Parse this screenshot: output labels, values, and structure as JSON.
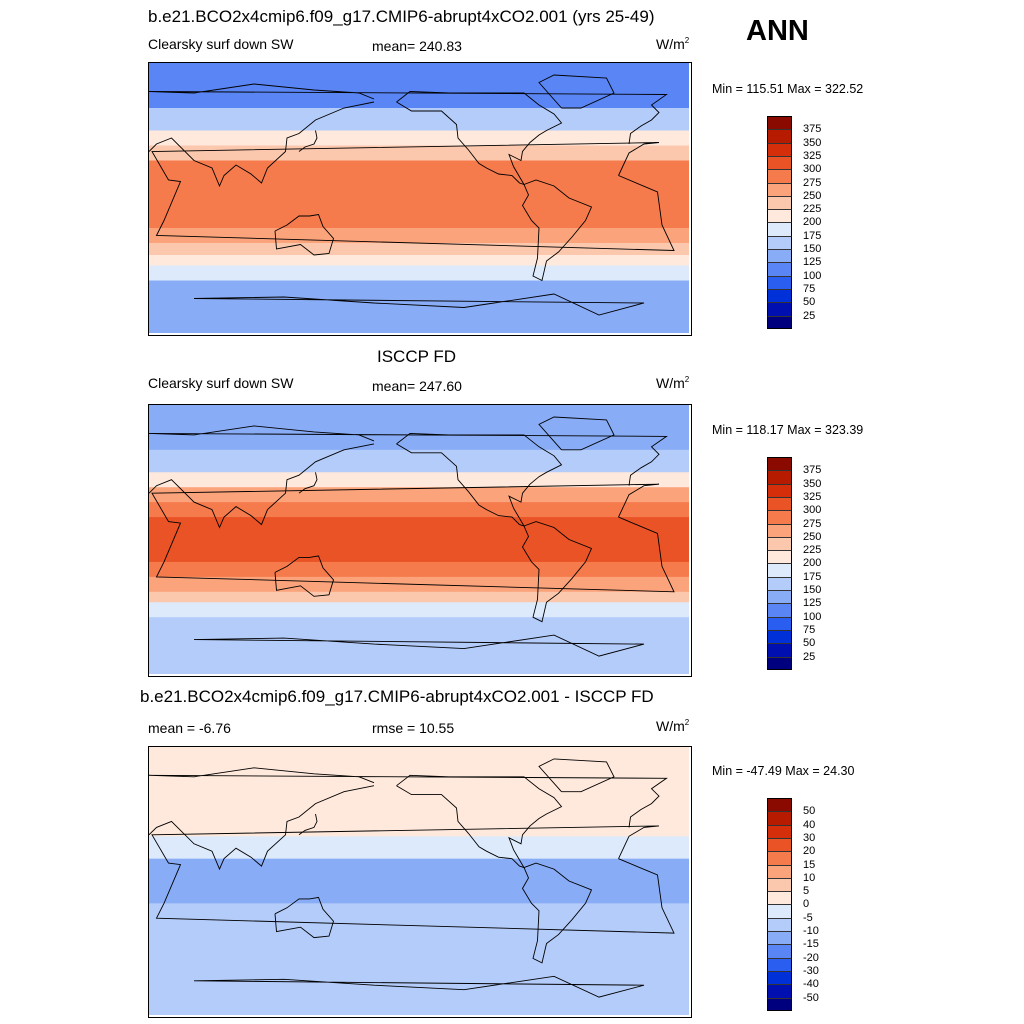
{
  "season": "ANN",
  "colors": {
    "abs_scale": [
      "#00007f",
      "#0010b0",
      "#0030d8",
      "#2a5ef0",
      "#5a86f5",
      "#88acf6",
      "#b4ccfa",
      "#dceafc",
      "#ffe9dc",
      "#fcc8ad",
      "#fba47c",
      "#f57a4c",
      "#e95325",
      "#d52e0b",
      "#b61b00",
      "#8b0a00"
    ],
    "diff_scale": [
      "#00007f",
      "#0010b0",
      "#0030d8",
      "#2a5ef0",
      "#5a86f5",
      "#88acf6",
      "#b4ccfa",
      "#dceafc",
      "#ffe9dc",
      "#fcc8ad",
      "#fba47c",
      "#f57a4c",
      "#e95325",
      "#d52e0b",
      "#b61b00",
      "#8b0a00"
    ]
  },
  "panels": [
    {
      "title": "b.e21.BCO2x4cmip6.f09_g17.CMIP6-abrupt4xCO2.001 (yrs 25-49)",
      "left_label": "Clearsky surf down SW",
      "center_label": "mean= 240.83",
      "unit_base": "W/m",
      "unit_sup": "2",
      "minmax": "Min = 115.51 Max = 322.52",
      "colorbar_labels": [
        "375",
        "350",
        "325",
        "300",
        "275",
        "250",
        "225",
        "200",
        "175",
        "150",
        "125",
        "100",
        "75",
        "50",
        "25"
      ]
    },
    {
      "title": "ISCCP FD",
      "left_label": "Clearsky surf down SW",
      "center_label": "mean= 247.60",
      "unit_base": "W/m",
      "unit_sup": "2",
      "minmax": "Min = 118.17 Max = 323.39",
      "colorbar_labels": [
        "375",
        "350",
        "325",
        "300",
        "275",
        "250",
        "225",
        "200",
        "175",
        "150",
        "125",
        "100",
        "75",
        "50",
        "25"
      ]
    },
    {
      "title": "b.e21.BCO2x4cmip6.f09_g17.CMIP6-abrupt4xCO2.001 - ISCCP FD",
      "left_label": "mean =  -6.76",
      "center_label": "rmse =  10.55",
      "unit_base": "W/m",
      "unit_sup": "2",
      "minmax": "Min = -47.49 Max =  24.30",
      "colorbar_labels": [
        "50",
        "40",
        "30",
        "20",
        "15",
        "10",
        "5",
        "0",
        "-5",
        "-10",
        "-15",
        "-20",
        "-30",
        "-40",
        "-50"
      ]
    }
  ],
  "chart_data": [
    {
      "type": "heatmap",
      "title": "b.e21.BCO2x4cmip6.f09_g17.CMIP6-abrupt4xCO2.001 (yrs 25-49)",
      "variable": "Clearsky surf down SW",
      "units": "W/m2",
      "mean": 240.83,
      "min": 115.51,
      "max": 322.52,
      "levels": [
        25,
        50,
        75,
        100,
        125,
        150,
        175,
        200,
        225,
        250,
        275,
        300,
        325,
        350,
        375
      ],
      "zonal_bands": [
        {
          "lat": [
            60,
            90
          ],
          "value": 120
        },
        {
          "lat": [
            45,
            60
          ],
          "value": 165
        },
        {
          "lat": [
            35,
            45
          ],
          "value": 215
        },
        {
          "lat": [
            25,
            35
          ],
          "value": 245
        },
        {
          "lat": [
            15,
            25
          ],
          "value": 275
        },
        {
          "lat": [
            -20,
            15
          ],
          "value": 292
        },
        {
          "lat": [
            -30,
            -20
          ],
          "value": 270
        },
        {
          "lat": [
            -38,
            -30
          ],
          "value": 240
        },
        {
          "lat": [
            -45,
            -38
          ],
          "value": 210
        },
        {
          "lat": [
            -55,
            -45
          ],
          "value": 175
        },
        {
          "lat": [
            -90,
            -55
          ],
          "value": 135
        }
      ]
    },
    {
      "type": "heatmap",
      "title": "ISCCP FD",
      "variable": "Clearsky surf down SW",
      "units": "W/m2",
      "mean": 247.6,
      "min": 118.17,
      "max": 323.39,
      "levels": [
        25,
        50,
        75,
        100,
        125,
        150,
        175,
        200,
        225,
        250,
        275,
        300,
        325,
        350,
        375
      ],
      "zonal_bands": [
        {
          "lat": [
            60,
            90
          ],
          "value": 125
        },
        {
          "lat": [
            45,
            60
          ],
          "value": 170
        },
        {
          "lat": [
            35,
            45
          ],
          "value": 220
        },
        {
          "lat": [
            25,
            35
          ],
          "value": 255
        },
        {
          "lat": [
            15,
            25
          ],
          "value": 280
        },
        {
          "lat": [
            -15,
            15
          ],
          "value": 305
        },
        {
          "lat": [
            -25,
            -15
          ],
          "value": 285
        },
        {
          "lat": [
            -35,
            -25
          ],
          "value": 255
        },
        {
          "lat": [
            -42,
            -35
          ],
          "value": 225
        },
        {
          "lat": [
            -52,
            -42
          ],
          "value": 190
        },
        {
          "lat": [
            -90,
            -52
          ],
          "value": 150
        }
      ]
    },
    {
      "type": "heatmap",
      "title": "b.e21.BCO2x4cmip6.f09_g17.CMIP6-abrupt4xCO2.001 - ISCCP FD",
      "units": "W/m2",
      "mean": -6.76,
      "rmse": 10.55,
      "min": -47.49,
      "max": 24.3,
      "levels": [
        -50,
        -40,
        -30,
        -20,
        -15,
        -10,
        -5,
        0,
        5,
        10,
        15,
        20,
        30,
        40,
        50
      ],
      "zonal_bands": [
        {
          "lat": [
            50,
            90
          ],
          "value": 2
        },
        {
          "lat": [
            30,
            50
          ],
          "value": 4
        },
        {
          "lat": [
            15,
            30
          ],
          "value": -3
        },
        {
          "lat": [
            0,
            15
          ],
          "value": -12
        },
        {
          "lat": [
            -15,
            0
          ],
          "value": -14
        },
        {
          "lat": [
            -30,
            -15
          ],
          "value": -8
        },
        {
          "lat": [
            -90,
            -30
          ],
          "value": -6
        }
      ]
    }
  ]
}
